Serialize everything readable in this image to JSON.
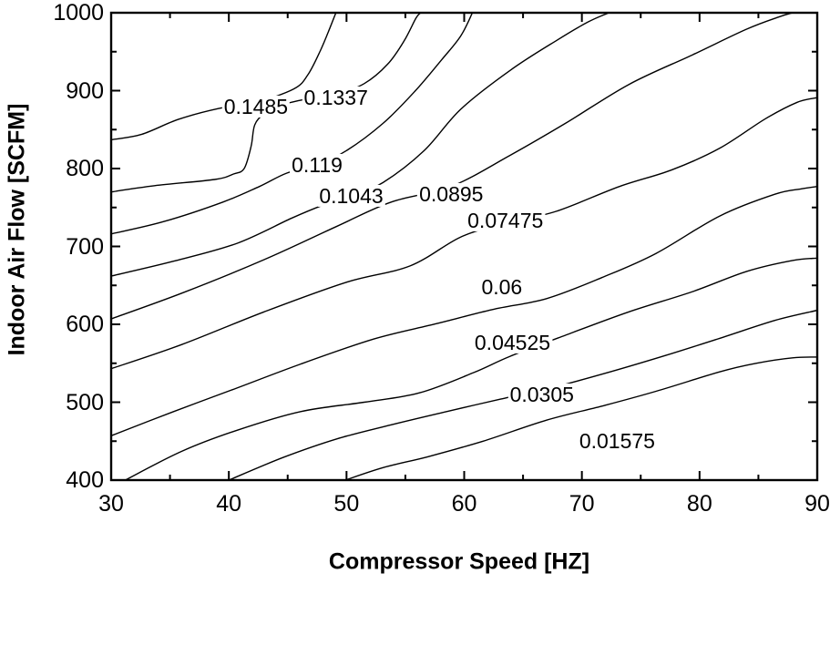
{
  "colors": {
    "background": "#ffffff",
    "line": "#000000",
    "text": "#000000"
  },
  "chart_data": {
    "type": "contour",
    "title": "",
    "xlabel": "Compressor Speed [HZ]",
    "ylabel": "Indoor Air Flow [SCFM]",
    "x_axis": {
      "min": 30,
      "max": 90,
      "major": 10,
      "minor": 5,
      "tick_labels": [
        "30",
        "40",
        "50",
        "60",
        "70",
        "80",
        "90"
      ]
    },
    "y_axis": {
      "min": 400,
      "max": 1000,
      "major": 100,
      "minor": 50,
      "tick_labels": [
        "400",
        "500",
        "600",
        "700",
        "800",
        "900",
        "1000"
      ]
    },
    "grid": false,
    "legend": "none",
    "contours": [
      {
        "level": "0.1485",
        "value": 0.1485,
        "label_at": [
          42.3,
          880
        ],
        "points": [
          [
            30,
            837
          ],
          [
            32.6,
            844
          ],
          [
            35.7,
            863
          ],
          [
            39.1,
            877
          ],
          [
            42.3,
            885
          ],
          [
            45.5,
            902
          ],
          [
            46.7,
            920
          ],
          [
            47.8,
            952
          ],
          [
            48.6,
            981
          ],
          [
            49.1,
            1000
          ]
        ]
      },
      {
        "level": "0.1337",
        "value": 0.1337,
        "label_at": [
          49.1,
          891
        ],
        "points": [
          [
            30,
            770
          ],
          [
            33.7,
            778
          ],
          [
            38.8,
            786
          ],
          [
            40.4,
            793
          ],
          [
            41.3,
            800
          ],
          [
            41.9,
            829
          ],
          [
            42.2,
            856
          ],
          [
            43,
            870
          ],
          [
            44.6,
            882
          ],
          [
            46.9,
            890
          ],
          [
            49.2,
            896
          ],
          [
            51.5,
            909
          ],
          [
            53.5,
            934
          ],
          [
            54.9,
            964
          ],
          [
            55.9,
            993
          ],
          [
            56.3,
            1000
          ]
        ]
      },
      {
        "level": "0.119",
        "value": 0.119,
        "label_at": [
          47.5,
          805
        ],
        "points": [
          [
            30,
            716
          ],
          [
            34.5,
            732
          ],
          [
            39.5,
            757
          ],
          [
            42.6,
            777
          ],
          [
            44.9,
            794
          ],
          [
            47.5,
            805
          ],
          [
            50,
            823
          ],
          [
            53.1,
            858
          ],
          [
            55.8,
            899
          ],
          [
            58.1,
            940
          ],
          [
            59.7,
            970
          ],
          [
            60.7,
            1000
          ]
        ]
      },
      {
        "level": "0.1043",
        "value": 0.1043,
        "label_at": [
          50.4,
          765
        ],
        "points": [
          [
            30,
            662
          ],
          [
            35.3,
            681
          ],
          [
            40.7,
            704
          ],
          [
            45.3,
            736
          ],
          [
            48,
            753
          ],
          [
            50.4,
            765
          ],
          [
            53.1,
            782
          ],
          [
            56.6,
            823
          ],
          [
            59.7,
            876
          ],
          [
            63.9,
            926
          ],
          [
            67.8,
            964
          ],
          [
            70.5,
            988
          ],
          [
            72.3,
            1000
          ]
        ]
      },
      {
        "level": "0.0895",
        "value": 0.0895,
        "label_at": [
          58.9,
          767
        ],
        "points": [
          [
            30,
            607
          ],
          [
            36,
            640
          ],
          [
            43,
            683
          ],
          [
            49.2,
            726
          ],
          [
            53.8,
            757
          ],
          [
            58.9,
            777
          ],
          [
            63.9,
            817
          ],
          [
            68.6,
            858
          ],
          [
            74,
            908
          ],
          [
            79.4,
            946
          ],
          [
            84,
            979
          ],
          [
            86.8,
            995
          ],
          [
            87.9,
            1000
          ]
        ]
      },
      {
        "level": "0.07475",
        "value": 0.07475,
        "label_at": [
          63.5,
          733
        ],
        "points": [
          [
            30,
            543
          ],
          [
            36,
            574
          ],
          [
            43,
            616
          ],
          [
            50,
            654
          ],
          [
            55.4,
            675
          ],
          [
            59.7,
            712
          ],
          [
            63.5,
            730
          ],
          [
            67.8,
            745
          ],
          [
            73.2,
            777
          ],
          [
            77.6,
            798
          ],
          [
            81.7,
            826
          ],
          [
            85.6,
            864
          ],
          [
            88.3,
            885
          ],
          [
            90,
            891
          ]
        ]
      },
      {
        "level": "0.06",
        "value": 0.06,
        "label_at": [
          63.2,
          648
        ],
        "points": [
          [
            30,
            457
          ],
          [
            35.3,
            488
          ],
          [
            40.3,
            516
          ],
          [
            46.1,
            549
          ],
          [
            52.3,
            581
          ],
          [
            57.7,
            601
          ],
          [
            62.4,
            619
          ],
          [
            67,
            633
          ],
          [
            71.7,
            660
          ],
          [
            76.3,
            691
          ],
          [
            81.7,
            739
          ],
          [
            86.4,
            767
          ],
          [
            88.7,
            774
          ],
          [
            90,
            777
          ]
        ]
      },
      {
        "level": "0.04525",
        "value": 0.04525,
        "label_at": [
          64.1,
          577
        ],
        "points": [
          [
            31.2,
            400
          ],
          [
            36,
            437
          ],
          [
            40.7,
            464
          ],
          [
            46.1,
            488
          ],
          [
            51.5,
            500
          ],
          [
            56.2,
            512
          ],
          [
            60.8,
            538
          ],
          [
            63.9,
            559
          ],
          [
            68.6,
            586
          ],
          [
            74,
            616
          ],
          [
            79.4,
            642
          ],
          [
            84,
            668
          ],
          [
            87.9,
            682
          ],
          [
            90,
            685
          ]
        ]
      },
      {
        "level": "0.0305",
        "value": 0.0305,
        "label_at": [
          66.6,
          510
        ],
        "points": [
          [
            40,
            400
          ],
          [
            44.6,
            429
          ],
          [
            49.2,
            453
          ],
          [
            53.8,
            471
          ],
          [
            58.5,
            488
          ],
          [
            63.1,
            504
          ],
          [
            67.8,
            520
          ],
          [
            72.4,
            539
          ],
          [
            77.1,
            560
          ],
          [
            81.7,
            582
          ],
          [
            86.4,
            605
          ],
          [
            90,
            618
          ]
        ]
      },
      {
        "level": "0.01575",
        "value": 0.01575,
        "label_at": [
          73,
          450
        ],
        "points": [
          [
            49.9,
            400
          ],
          [
            53.1,
            416
          ],
          [
            56.9,
            430
          ],
          [
            61.6,
            450
          ],
          [
            67,
            477
          ],
          [
            71.7,
            495
          ],
          [
            76.3,
            514
          ],
          [
            81.7,
            539
          ],
          [
            84.8,
            550
          ],
          [
            87.9,
            557
          ],
          [
            90,
            558
          ]
        ]
      }
    ]
  }
}
